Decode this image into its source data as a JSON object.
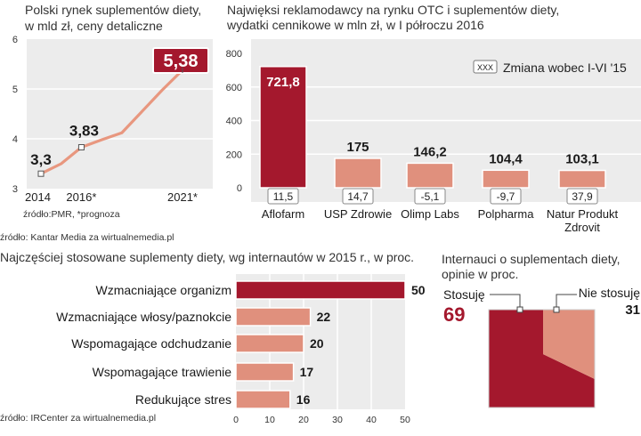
{
  "colors": {
    "dark": "#a4182d",
    "light": "#e0907d",
    "line": "#e8977f",
    "panel": "#ececec",
    "grid": "#ffffff"
  },
  "chart_data": [
    {
      "id": "market",
      "type": "line",
      "title_lines": [
        "Polski rynek suplementów diety,",
        "w mld zł, ceny detaliczne"
      ],
      "x": [
        2014,
        2015,
        2016,
        2017,
        2018,
        2019,
        2020,
        2021
      ],
      "values": [
        3.3,
        3.5,
        3.83,
        3.98,
        4.12,
        4.55,
        4.98,
        5.38
      ],
      "labelled_points": [
        {
          "x": 2014,
          "label": "3,3"
        },
        {
          "x": 2016,
          "label": "3,83"
        },
        {
          "x": 2021,
          "label": "5,38"
        }
      ],
      "x_ticks": [
        "2014",
        "2016*",
        "2021*"
      ],
      "y_ticks": [
        "3",
        "4",
        "5",
        "6"
      ],
      "ylim": [
        3,
        6
      ],
      "source": "źródło:PMR, *prognoza"
    },
    {
      "id": "advertisers",
      "type": "bar",
      "title_lines": [
        "Najwięksi reklamodawcy na rynku OTC i suplementów diety,",
        "wydatki cennikowe w mln zł, w I półroczu 2016"
      ],
      "categories": [
        "Aflofarm",
        "USP Zdrowie",
        "Olimp Labs",
        "Polpharma",
        "Natur Produkt Zdrovit"
      ],
      "category_lines": [
        [
          "Aflofarm"
        ],
        [
          "USP Zdrowie"
        ],
        [
          "Olimp Labs"
        ],
        [
          "Polpharma"
        ],
        [
          "Natur Produkt",
          "Zdrovit"
        ]
      ],
      "values": [
        721.8,
        175,
        146.2,
        104.4,
        103.1
      ],
      "value_labels": [
        "721,8",
        "175",
        "146,2",
        "104,4",
        "103,1"
      ],
      "change_labels": [
        "11,5",
        "14,7",
        "-5,1",
        "-9,7",
        "37,9"
      ],
      "legend_badge": "XXX",
      "legend_text": "Zmiana wobec I-VI '15",
      "y_ticks": [
        "0",
        "200",
        "400",
        "600",
        "800"
      ],
      "ylim": [
        0,
        800
      ],
      "source": "źródło: Kantar Media za wirtualnemedia.pl"
    },
    {
      "id": "supplements",
      "type": "bar",
      "orientation": "horizontal",
      "title": "Najczęściej stosowane suplementy diety, wg internautów w 2015 r., w proc.",
      "categories": [
        "Wzmacniające organizm",
        "Wzmacniające włosy/paznokcie",
        "Wspomagające odchudzanie",
        "Wspomagające trawienie",
        "Redukujące stres"
      ],
      "values": [
        50,
        22,
        20,
        17,
        16
      ],
      "value_labels": [
        "50",
        "22",
        "20",
        "17",
        "16"
      ],
      "x_ticks": [
        "0",
        "10",
        "20",
        "30",
        "40",
        "50"
      ],
      "xlim": [
        0,
        50
      ],
      "source": "źródło: IRCenter za wirtualnemedia.pl"
    },
    {
      "id": "usage",
      "type": "pie",
      "title_lines": [
        "Internauci o suplementach diety,",
        "opinie w proc."
      ],
      "labels": [
        "Stosuję",
        "Nie stosuję"
      ],
      "values": [
        69,
        31
      ],
      "value_labels": [
        "69",
        "31"
      ]
    }
  ]
}
